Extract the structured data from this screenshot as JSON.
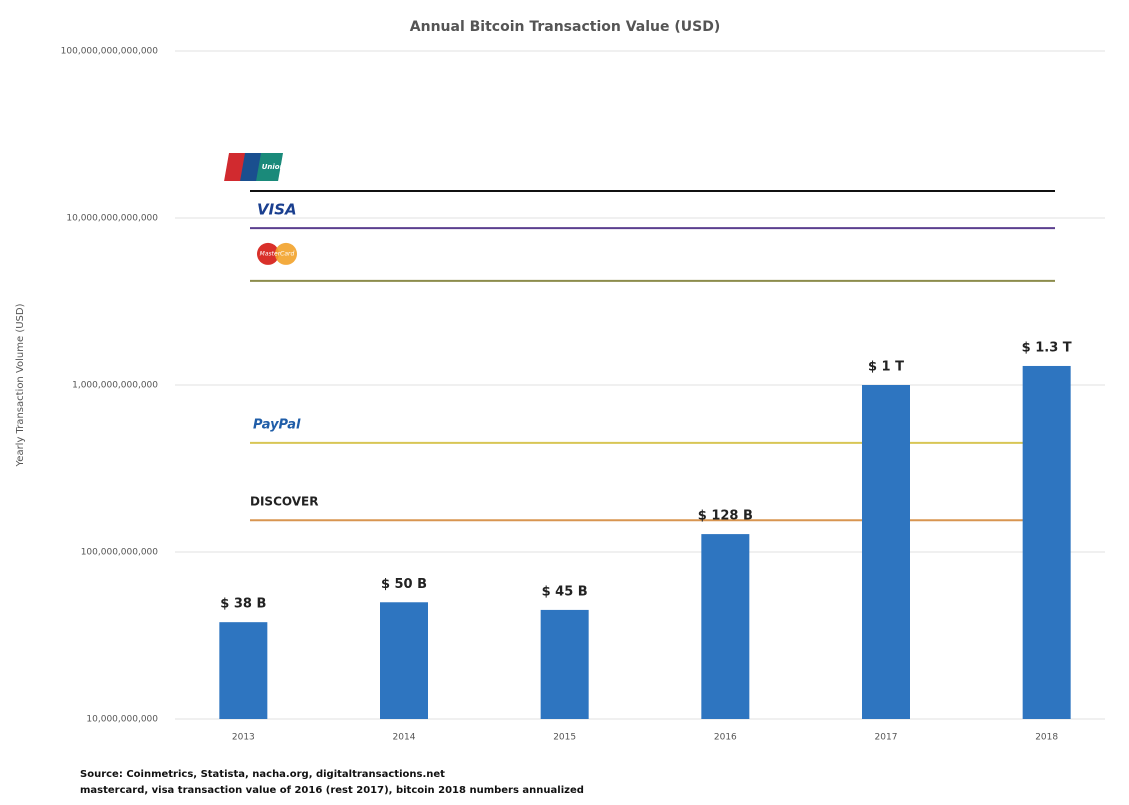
{
  "chart_data": {
    "type": "bar",
    "title": "Annual Bitcoin Transaction Value (USD)",
    "y_label": "Yearly Transaction Volume (USD)",
    "categories": [
      "2013",
      "2014",
      "2015",
      "2016",
      "2017",
      "2018"
    ],
    "values": [
      38000000000,
      50000000000,
      45000000000,
      128000000000,
      1000000000000,
      1300000000000
    ],
    "value_labels": [
      "$ 38 B",
      "$ 50 B",
      "$ 45 B",
      "$ 128 B",
      "$ 1 T",
      "$ 1.3 T"
    ],
    "color": "#2e75c0",
    "log_y": true,
    "ylim": [
      10000000000,
      100000000000000
    ],
    "yticks": [
      {
        "value": 10000000000,
        "label": "10,000,000,000"
      },
      {
        "value": 100000000000,
        "label": "100,000,000,000"
      },
      {
        "value": 1000000000000,
        "label": "1,000,000,000,000"
      },
      {
        "value": 10000000000000,
        "label": "10,000,000,000,000"
      },
      {
        "value": 100000000000000,
        "label": "100,000,000,000,000"
      }
    ],
    "grid": true,
    "reference_lines": [
      {
        "name": "UnionPay",
        "color": "#111111",
        "value": 14500000000000
      },
      {
        "name": "VISA",
        "color": "#5b3f8f",
        "value": 8700000000000
      },
      {
        "name": "MasterCard",
        "color": "#8c8c4c",
        "value": 4200000000000
      },
      {
        "name": "PayPal",
        "color": "#d8c655",
        "value": 450000000000
      },
      {
        "name": "DISCOVER",
        "color": "#d89550",
        "value": 155000000000
      }
    ],
    "footnotes": [
      "Source: Coinmetrics, Statista, nacha.org, digitaltransactions.net",
      "mastercard, visa transaction value of 2016 (rest 2017), bitcoin 2018 numbers annualized"
    ]
  }
}
